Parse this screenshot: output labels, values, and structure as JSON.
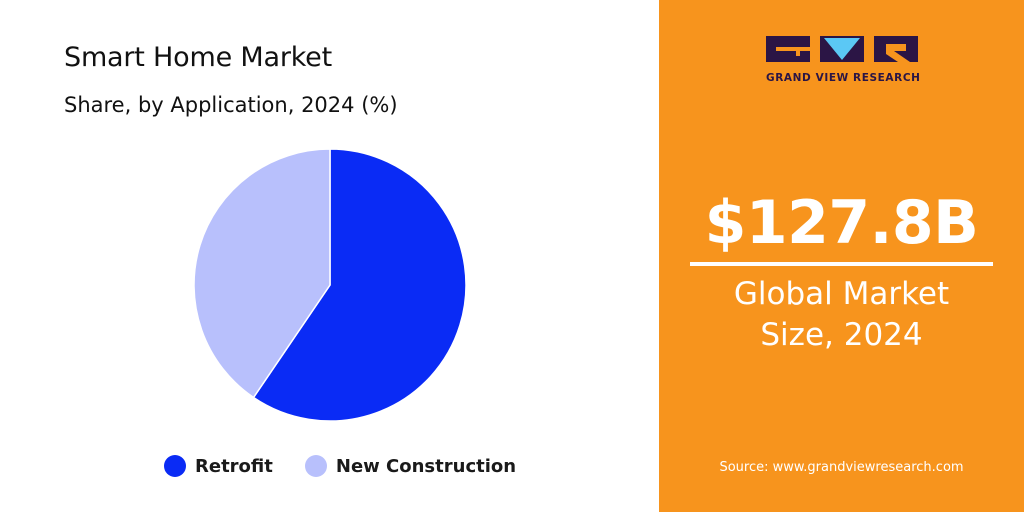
{
  "chart_data": {
    "type": "pie",
    "title": "Smart Home Market",
    "subtitle": "Share, by Application, 2024 (%)",
    "categories": [
      "Retrofit",
      "New Construction"
    ],
    "values": [
      59.5,
      40.5
    ],
    "colors": [
      "#0a2bf5",
      "#b8c0fc"
    ],
    "legend_position": "bottom"
  },
  "panel": {
    "brand": "GRAND VIEW RESEARCH",
    "brand_colors": {
      "dark": "#2b1545",
      "accent": "#5bc8f5"
    },
    "value": "$127.8B",
    "caption_line1": "Global Market",
    "caption_line2": "Size, 2024",
    "source": "Source: www.grandviewresearch.com",
    "background": "#f7941d"
  }
}
